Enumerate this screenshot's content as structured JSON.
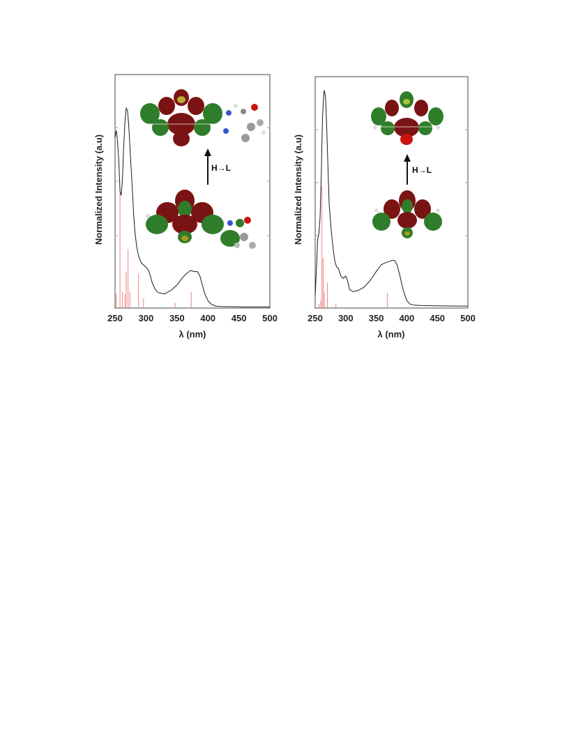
{
  "chart_data": [
    {
      "type": "line",
      "xlabel": "λ (nm)",
      "ylabel": "Normalized Intensity (a.u)",
      "xlim": [
        250,
        500
      ],
      "ylim": [
        0,
        1
      ],
      "xticks": [
        "250",
        "300",
        "350",
        "400",
        "450",
        "500"
      ],
      "grid": false,
      "legend": "none",
      "annotation": "H→L",
      "colors": {
        "curve": "#1a1a1a",
        "sticks": "#f08080",
        "lobe_pos": "#2f7d2a",
        "lobe_neg": "#7a1414"
      },
      "series": [
        {
          "values": [
            [
              250,
              0.76
            ],
            [
              252,
              0.79
            ],
            [
              254,
              0.74
            ],
            [
              256,
              0.66
            ],
            [
              258,
              0.52
            ],
            [
              260,
              0.5
            ],
            [
              262,
              0.58
            ],
            [
              264,
              0.72
            ],
            [
              266,
              0.83
            ],
            [
              268,
              0.89
            ],
            [
              270,
              0.88
            ],
            [
              272,
              0.82
            ],
            [
              274,
              0.72
            ],
            [
              276,
              0.62
            ],
            [
              278,
              0.52
            ],
            [
              280,
              0.42
            ],
            [
              282,
              0.34
            ],
            [
              285,
              0.27
            ],
            [
              288,
              0.23
            ],
            [
              292,
              0.2
            ],
            [
              296,
              0.19
            ],
            [
              300,
              0.18
            ],
            [
              303,
              0.17
            ],
            [
              306,
              0.15
            ],
            [
              310,
              0.11
            ],
            [
              315,
              0.08
            ],
            [
              320,
              0.065
            ],
            [
              330,
              0.06
            ],
            [
              340,
              0.075
            ],
            [
              350,
              0.1
            ],
            [
              358,
              0.13
            ],
            [
              365,
              0.15
            ],
            [
              372,
              0.165
            ],
            [
              378,
              0.16
            ],
            [
              383,
              0.16
            ],
            [
              387,
              0.14
            ],
            [
              391,
              0.1
            ],
            [
              395,
              0.06
            ],
            [
              400,
              0.03
            ],
            [
              405,
              0.015
            ],
            [
              412,
              0.006
            ],
            [
              420,
              0.004
            ],
            [
              440,
              0.003
            ],
            [
              460,
              0.002
            ],
            [
              480,
              0.002
            ],
            [
              500,
              0.002
            ]
          ]
        }
      ],
      "sticks": [
        [
          252,
          0.06
        ],
        [
          258,
          0.52
        ],
        [
          262,
          0.07
        ],
        [
          266,
          0.06
        ],
        [
          268,
          0.16
        ],
        [
          271,
          0.26
        ],
        [
          274,
          0.07
        ],
        [
          288,
          0.15
        ],
        [
          296,
          0.04
        ],
        [
          347,
          0.02
        ],
        [
          373,
          0.07
        ]
      ]
    },
    {
      "type": "line",
      "xlabel": "λ (nm)",
      "ylabel": "Normalized Intensity (a.u)",
      "xlim": [
        250,
        500
      ],
      "ylim": [
        0,
        1
      ],
      "xticks": [
        "250",
        "300",
        "350",
        "400",
        "450",
        "500"
      ],
      "grid": false,
      "legend": "none",
      "annotation": "H→L",
      "colors": {
        "curve": "#1a1a1a",
        "sticks": "#f08080",
        "lobe_pos": "#2f7d2a",
        "lobe_neg": "#7a1414"
      },
      "series": [
        {
          "values": [
            [
              250,
              0.05
            ],
            [
              252,
              0.17
            ],
            [
              254,
              0.3
            ],
            [
              256,
              0.33
            ],
            [
              258,
              0.4
            ],
            [
              260,
              0.6
            ],
            [
              262,
              0.85
            ],
            [
              264,
              0.95
            ],
            [
              265,
              0.97
            ],
            [
              267,
              0.94
            ],
            [
              269,
              0.8
            ],
            [
              271,
              0.62
            ],
            [
              273,
              0.46
            ],
            [
              276,
              0.35
            ],
            [
              279,
              0.27
            ],
            [
              282,
              0.21
            ],
            [
              285,
              0.18
            ],
            [
              288,
              0.175
            ],
            [
              292,
              0.14
            ],
            [
              296,
              0.13
            ],
            [
              300,
              0.14
            ],
            [
              303,
              0.12
            ],
            [
              306,
              0.08
            ],
            [
              312,
              0.07
            ],
            [
              320,
              0.075
            ],
            [
              330,
              0.09
            ],
            [
              340,
              0.12
            ],
            [
              350,
              0.16
            ],
            [
              358,
              0.19
            ],
            [
              365,
              0.2
            ],
            [
              371,
              0.205
            ],
            [
              376,
              0.21
            ],
            [
              380,
              0.21
            ],
            [
              384,
              0.19
            ],
            [
              388,
              0.15
            ],
            [
              392,
              0.1
            ],
            [
              396,
              0.06
            ],
            [
              400,
              0.03
            ],
            [
              405,
              0.015
            ],
            [
              412,
              0.01
            ],
            [
              425,
              0.008
            ],
            [
              450,
              0.007
            ],
            [
              480,
              0.006
            ],
            [
              500,
              0.006
            ]
          ]
        }
      ],
      "sticks": [
        [
          256,
          0.015
        ],
        [
          259,
          0.03
        ],
        [
          261,
          0.54
        ],
        [
          263,
          0.22
        ],
        [
          265,
          0.07
        ],
        [
          270,
          0.11
        ],
        [
          284,
          0.015
        ],
        [
          368,
          0.065
        ]
      ]
    }
  ]
}
